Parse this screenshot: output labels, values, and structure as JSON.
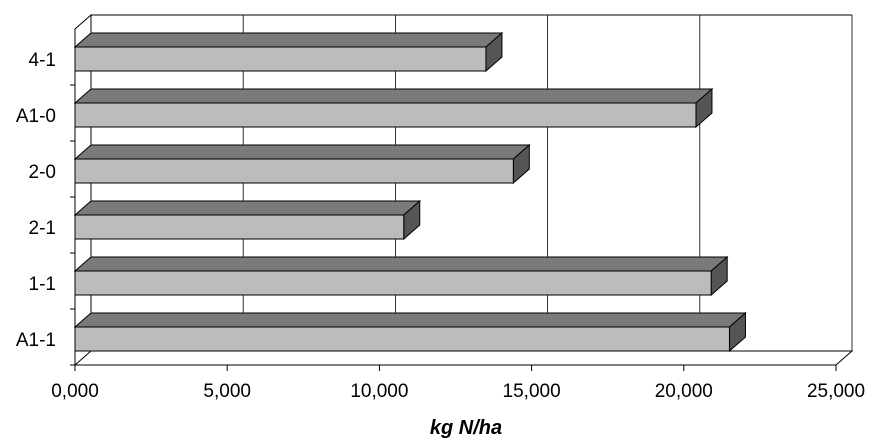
{
  "chart_data": {
    "type": "bar",
    "orientation": "horizontal",
    "style": "3d",
    "categories": [
      "A1-1",
      "1-1",
      "2-1",
      "2-0",
      "A1-0",
      "4-1"
    ],
    "values": [
      21500,
      20900,
      10800,
      14400,
      20400,
      13500
    ],
    "xlabel": "kg N/ha",
    "ylabel": "",
    "title": "",
    "xlim": [
      0,
      25000
    ],
    "x_ticks": [
      "0,000",
      "5,000",
      "10,000",
      "15,000",
      "20,000",
      "25,000"
    ],
    "grid": "vertical",
    "legend": "none",
    "colors": {
      "bar_front": "#bcbcbc",
      "bar_top": "#7a7a7a",
      "bar_side": "#555555",
      "grid": "#000000"
    }
  }
}
